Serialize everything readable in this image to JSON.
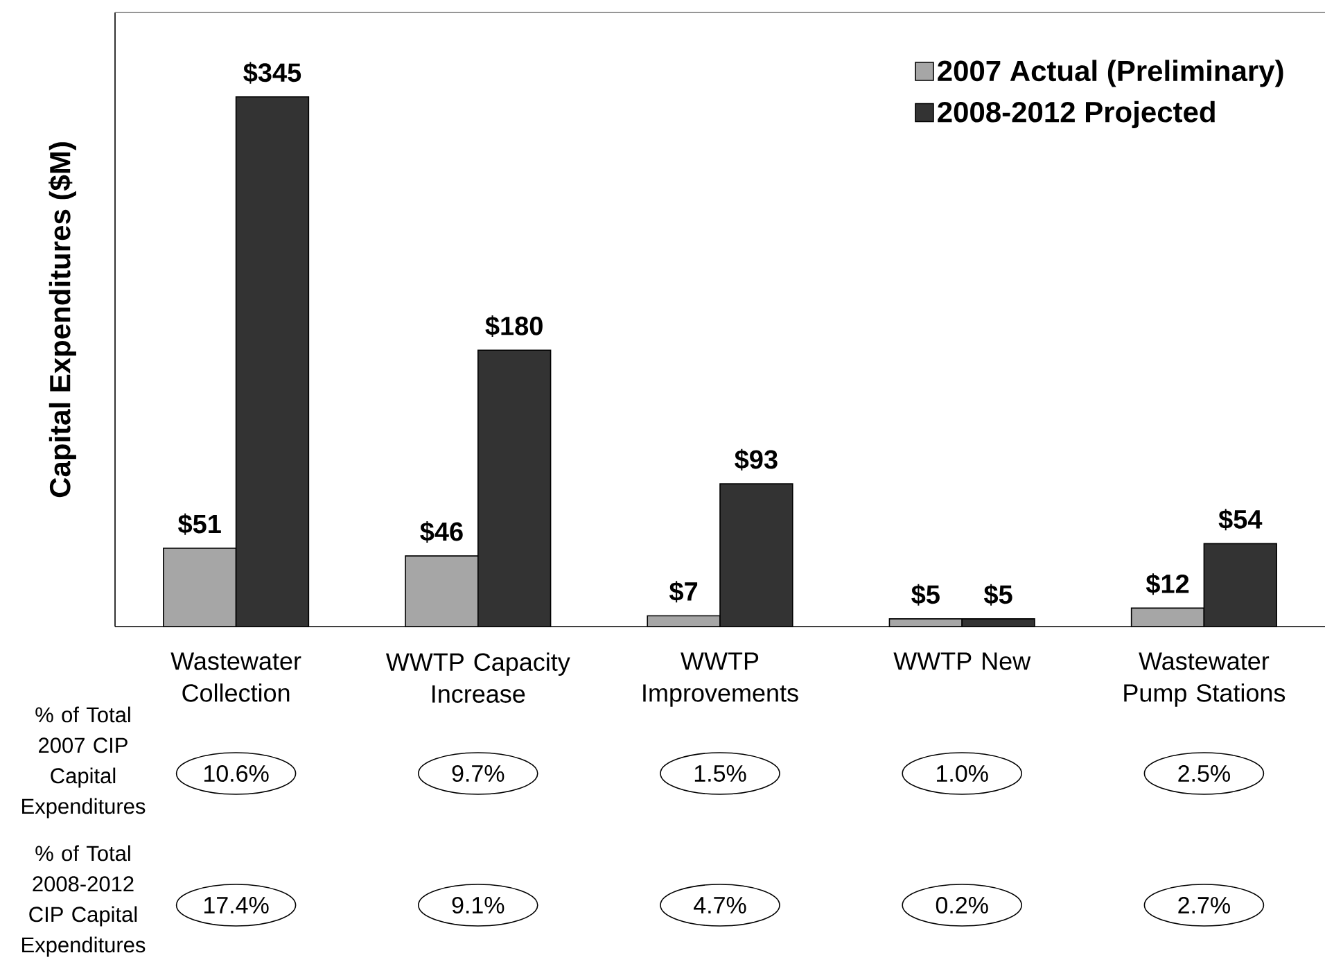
{
  "chart_data": {
    "type": "bar",
    "ylabel": "Capital Expenditures ($M)",
    "categories": [
      "Wastewater Collection",
      "WWTP Capacity Increase",
      "WWTP Improvements",
      "WWTP New",
      "Wastewater Pump Stations"
    ],
    "series": [
      {
        "name": "2007 Actual (Preliminary)",
        "color": "#a6a6a6",
        "values": [
          51,
          46,
          7,
          5,
          12
        ],
        "value_labels": [
          "$51",
          "$46",
          "$7",
          "$5",
          "$12"
        ]
      },
      {
        "name": "2008-2012 Projected",
        "color": "#333333",
        "values": [
          345,
          180,
          93,
          5,
          54
        ],
        "value_labels": [
          "$345",
          "$180",
          "$93",
          "$5",
          "$54"
        ]
      }
    ],
    "ylim": [
      0,
      400
    ],
    "legend": "top right",
    "tick_labels": "x",
    "annotations": [
      "% of Total 2007 CIP Capital Expenditures",
      "10.6%",
      "9.7%",
      "1.5%",
      "1.0%",
      "2.5%",
      "% of Total 2008-2012 CIP Capital Expenditures",
      "17.4%",
      "9.1%",
      "4.7%",
      "0.2%",
      "2.7%"
    ]
  }
}
